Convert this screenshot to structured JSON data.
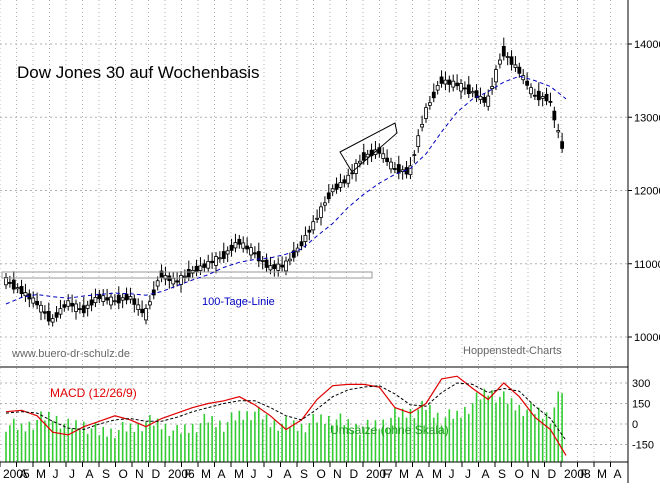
{
  "chart_data": [
    {
      "type": "candlestick",
      "title": "Dow Jones 30 auf Wochenbasis",
      "source": "Hoppenstedt-Charts",
      "website": "www.buero-dr-schulz.de",
      "ylim": [
        9800,
        14500
      ],
      "yticks": [
        10000,
        11000,
        12000,
        13000,
        14000
      ],
      "series": [
        {
          "name": "Dow Jones 30",
          "kind": "weekly-close",
          "color": "#000000"
        },
        {
          "name": "100-Tage-Linie",
          "kind": "moving-average",
          "color": "#0000c0"
        }
      ],
      "x": [
        "2005-01",
        "2005-02",
        "2005-03",
        "2005-04",
        "2005-05",
        "2005-06",
        "2005-07",
        "2005-08",
        "2005-09",
        "2005-10",
        "2005-11",
        "2005-12",
        "2006-01",
        "2006-02",
        "2006-03",
        "2006-04",
        "2006-05",
        "2006-06",
        "2006-07",
        "2006-08",
        "2006-09",
        "2006-10",
        "2006-11",
        "2006-12",
        "2007-01",
        "2007-02",
        "2007-03",
        "2007-04",
        "2007-05",
        "2007-06",
        "2007-07",
        "2007-08",
        "2007-09",
        "2007-10",
        "2007-11",
        "2007-12",
        "2008-01"
      ],
      "close": [
        10780,
        10640,
        10470,
        10220,
        10470,
        10360,
        10550,
        10490,
        10550,
        10300,
        10850,
        10750,
        10890,
        10990,
        11100,
        11300,
        11150,
        10950,
        10970,
        11250,
        11600,
        12000,
        12150,
        12450,
        12550,
        12300,
        12250,
        13050,
        13500,
        13450,
        13350,
        13200,
        13900,
        13650,
        13300,
        13250,
        12450
      ],
      "ma100": [
        10450,
        10540,
        10580,
        10550,
        10530,
        10560,
        10580,
        10600,
        10590,
        10570,
        10620,
        10700,
        10780,
        10850,
        10950,
        11020,
        11060,
        11080,
        11130,
        11200,
        11380,
        11550,
        11770,
        11950,
        12100,
        12220,
        12300,
        12500,
        12800,
        13070,
        13250,
        13350,
        13480,
        13560,
        13500,
        13420,
        13250
      ],
      "annotations": [
        {
          "text": "100-Tage-Linie",
          "color": "#0000c0"
        }
      ]
    },
    {
      "type": "line+bar",
      "ylim": [
        -250,
        400
      ],
      "yticks": [
        300,
        150,
        0,
        -150
      ],
      "series": [
        {
          "name": "MACD (12/26/9)",
          "kind": "line",
          "color": "#e00000",
          "values": [
            90,
            100,
            60,
            -60,
            -80,
            -20,
            20,
            60,
            30,
            -20,
            40,
            80,
            120,
            150,
            170,
            200,
            140,
            60,
            -40,
            30,
            180,
            280,
            290,
            290,
            270,
            120,
            80,
            150,
            330,
            350,
            260,
            180,
            300,
            200,
            50,
            -40,
            -230
          ]
        },
        {
          "name": "Signal",
          "kind": "dashed-line",
          "color": "#000000",
          "values": [
            80,
            90,
            80,
            20,
            -30,
            -40,
            0,
            30,
            40,
            20,
            20,
            50,
            90,
            120,
            150,
            170,
            170,
            120,
            60,
            30,
            110,
            200,
            250,
            270,
            280,
            220,
            140,
            130,
            230,
            300,
            290,
            230,
            260,
            240,
            130,
            40,
            -120
          ]
        },
        {
          "name": "Umsätze (ohne Skala)",
          "kind": "bar",
          "color": "#33cc33",
          "values": [
            90,
            80,
            100,
            110,
            85,
            90,
            70,
            75,
            80,
            95,
            90,
            70,
            85,
            100,
            90,
            110,
            120,
            95,
            90,
            85,
            100,
            105,
            90,
            80,
            90,
            110,
            120,
            130,
            105,
            110,
            140,
            170,
            150,
            130,
            120,
            110,
            190
          ]
        }
      ]
    }
  ],
  "labels": {
    "title": "Dow Jones 30 auf Wochenbasis",
    "website": "www.buero-dr-schulz.de",
    "source": "Hoppenstedt-Charts",
    "ma_label": "100-Tage-Linie",
    "macd_label": "MACD (12/26/9)",
    "volume_label": "Umsätze (ohne Skala)"
  },
  "x_axis_labels": [
    "2005",
    "A",
    "M",
    "J",
    "J",
    "A",
    "S",
    "O",
    "N",
    "D",
    "2006",
    "F",
    "M",
    "A",
    "M",
    "J",
    "J",
    "A",
    "S",
    "O",
    "N",
    "D",
    "2007",
    "F",
    "M",
    "A",
    "M",
    "J",
    "J",
    "A",
    "S",
    "O",
    "N",
    "D",
    "2008",
    "F",
    "M",
    "A"
  ],
  "colors": {
    "price": "#000000",
    "ma": "#0000c0",
    "macd": "#e00000",
    "signal": "#000000",
    "volume": "#33cc33",
    "grid": "#b0b0b0"
  }
}
